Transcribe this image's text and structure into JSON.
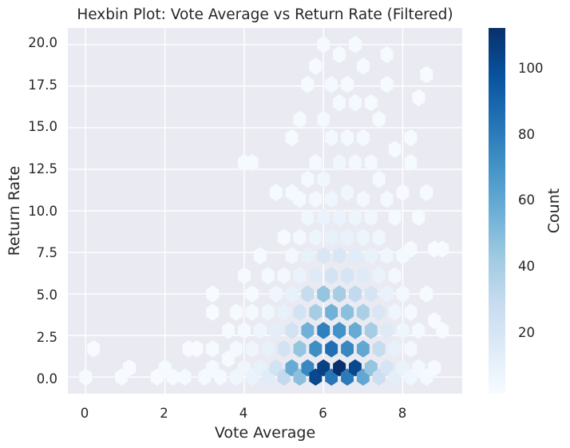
{
  "chart_data": {
    "type": "heatmap",
    "subtype": "hexbin",
    "title": "Hexbin Plot: Vote Average vs Return Rate (Filtered)",
    "xlabel": "Vote Average",
    "ylabel": "Return Rate",
    "xlim": [
      -0.45,
      9.5
    ],
    "ylim": [
      -1.0,
      21.0
    ],
    "xticks": [
      "0",
      "2",
      "4",
      "6",
      "8"
    ],
    "yticks": [
      "0.0",
      "2.5",
      "5.0",
      "7.5",
      "10.0",
      "12.5",
      "15.0",
      "17.5",
      "20.0"
    ],
    "grid": true,
    "colormap": "Blues",
    "colorbar": {
      "label": "Count",
      "range": [
        1,
        112
      ],
      "ticks": [
        "20",
        "40",
        "60",
        "80",
        "100"
      ]
    },
    "bins": [
      {
        "x": 0.0,
        "y": 0.0,
        "count": 1
      },
      {
        "x": 0.2,
        "y": 1.7,
        "count": 1
      },
      {
        "x": 0.9,
        "y": 0.0,
        "count": 1
      },
      {
        "x": 1.1,
        "y": 0.55,
        "count": 1
      },
      {
        "x": 1.8,
        "y": 0.0,
        "count": 1
      },
      {
        "x": 2.0,
        "y": 0.55,
        "count": 2
      },
      {
        "x": 2.2,
        "y": 0.0,
        "count": 2
      },
      {
        "x": 2.5,
        "y": 0.0,
        "count": 3
      },
      {
        "x": 2.6,
        "y": 1.7,
        "count": 1
      },
      {
        "x": 2.8,
        "y": 1.7,
        "count": 1
      },
      {
        "x": 3.0,
        "y": 0.0,
        "count": 3
      },
      {
        "x": 3.2,
        "y": 0.55,
        "count": 3
      },
      {
        "x": 3.2,
        "y": 1.7,
        "count": 2
      },
      {
        "x": 3.2,
        "y": 3.9,
        "count": 1
      },
      {
        "x": 3.2,
        "y": 5.0,
        "count": 1
      },
      {
        "x": 3.4,
        "y": 0.0,
        "count": 3
      },
      {
        "x": 3.6,
        "y": 1.1,
        "count": 2
      },
      {
        "x": 3.6,
        "y": 2.8,
        "count": 2
      },
      {
        "x": 3.8,
        "y": 0.0,
        "count": 5
      },
      {
        "x": 3.8,
        "y": 1.7,
        "count": 3
      },
      {
        "x": 3.8,
        "y": 3.9,
        "count": 2
      },
      {
        "x": 4.0,
        "y": 0.55,
        "count": 6
      },
      {
        "x": 4.0,
        "y": 2.8,
        "count": 3
      },
      {
        "x": 4.0,
        "y": 6.1,
        "count": 2
      },
      {
        "x": 4.0,
        "y": 12.9,
        "count": 2
      },
      {
        "x": 4.2,
        "y": 12.9,
        "count": 2
      },
      {
        "x": 4.2,
        "y": 0.0,
        "count": 8
      },
      {
        "x": 4.2,
        "y": 1.7,
        "count": 6
      },
      {
        "x": 4.2,
        "y": 3.9,
        "count": 3
      },
      {
        "x": 4.2,
        "y": 5.0,
        "count": 2
      },
      {
        "x": 4.4,
        "y": 0.55,
        "count": 10
      },
      {
        "x": 4.4,
        "y": 2.8,
        "count": 6
      },
      {
        "x": 4.4,
        "y": 7.3,
        "count": 2
      },
      {
        "x": 4.6,
        "y": 0.0,
        "count": 14
      },
      {
        "x": 4.6,
        "y": 1.7,
        "count": 10
      },
      {
        "x": 4.6,
        "y": 3.9,
        "count": 5
      },
      {
        "x": 4.6,
        "y": 6.1,
        "count": 3
      },
      {
        "x": 4.8,
        "y": 0.55,
        "count": 22
      },
      {
        "x": 4.8,
        "y": 2.8,
        "count": 12
      },
      {
        "x": 4.8,
        "y": 5.0,
        "count": 5
      },
      {
        "x": 4.8,
        "y": 11.1,
        "count": 2
      },
      {
        "x": 5.0,
        "y": 0.0,
        "count": 30
      },
      {
        "x": 5.0,
        "y": 1.7,
        "count": 22
      },
      {
        "x": 5.0,
        "y": 3.9,
        "count": 10
      },
      {
        "x": 5.0,
        "y": 6.1,
        "count": 4
      },
      {
        "x": 5.0,
        "y": 8.4,
        "count": 2
      },
      {
        "x": 5.2,
        "y": 0.55,
        "count": 58
      },
      {
        "x": 5.2,
        "y": 2.8,
        "count": 22
      },
      {
        "x": 5.2,
        "y": 5.0,
        "count": 10
      },
      {
        "x": 5.2,
        "y": 7.3,
        "count": 4
      },
      {
        "x": 5.2,
        "y": 11.1,
        "count": 3
      },
      {
        "x": 5.2,
        "y": 14.4,
        "count": 2
      },
      {
        "x": 5.4,
        "y": 0.0,
        "count": 48
      },
      {
        "x": 5.4,
        "y": 1.7,
        "count": 45
      },
      {
        "x": 5.4,
        "y": 3.9,
        "count": 22
      },
      {
        "x": 5.4,
        "y": 6.1,
        "count": 8
      },
      {
        "x": 5.4,
        "y": 8.4,
        "count": 4
      },
      {
        "x": 5.4,
        "y": 10.7,
        "count": 3
      },
      {
        "x": 5.4,
        "y": 15.5,
        "count": 2
      },
      {
        "x": 5.6,
        "y": 0.55,
        "count": 75
      },
      {
        "x": 5.6,
        "y": 2.8,
        "count": 55
      },
      {
        "x": 5.6,
        "y": 5.0,
        "count": 28
      },
      {
        "x": 5.6,
        "y": 7.3,
        "count": 10
      },
      {
        "x": 5.6,
        "y": 9.6,
        "count": 5
      },
      {
        "x": 5.6,
        "y": 11.9,
        "count": 3
      },
      {
        "x": 5.6,
        "y": 17.6,
        "count": 2
      },
      {
        "x": 5.8,
        "y": 0.0,
        "count": 102
      },
      {
        "x": 5.8,
        "y": 1.7,
        "count": 72
      },
      {
        "x": 5.8,
        "y": 3.9,
        "count": 40
      },
      {
        "x": 5.8,
        "y": 6.1,
        "count": 15
      },
      {
        "x": 5.8,
        "y": 8.4,
        "count": 7
      },
      {
        "x": 5.8,
        "y": 10.7,
        "count": 4
      },
      {
        "x": 5.8,
        "y": 12.9,
        "count": 3
      },
      {
        "x": 5.8,
        "y": 18.7,
        "count": 2
      },
      {
        "x": 6.0,
        "y": 0.55,
        "count": 105
      },
      {
        "x": 6.0,
        "y": 2.8,
        "count": 78
      },
      {
        "x": 6.0,
        "y": 5.0,
        "count": 45
      },
      {
        "x": 6.0,
        "y": 7.3,
        "count": 18
      },
      {
        "x": 6.0,
        "y": 9.6,
        "count": 8
      },
      {
        "x": 6.0,
        "y": 11.9,
        "count": 5
      },
      {
        "x": 6.0,
        "y": 15.5,
        "count": 3
      },
      {
        "x": 6.0,
        "y": 20.0,
        "count": 2
      },
      {
        "x": 6.2,
        "y": 0.0,
        "count": 82
      },
      {
        "x": 6.2,
        "y": 1.7,
        "count": 85
      },
      {
        "x": 6.2,
        "y": 3.9,
        "count": 55
      },
      {
        "x": 6.2,
        "y": 6.1,
        "count": 22
      },
      {
        "x": 6.2,
        "y": 8.4,
        "count": 10
      },
      {
        "x": 6.2,
        "y": 10.7,
        "count": 6
      },
      {
        "x": 6.2,
        "y": 14.4,
        "count": 4
      },
      {
        "x": 6.2,
        "y": 17.6,
        "count": 3
      },
      {
        "x": 6.4,
        "y": 0.55,
        "count": 112
      },
      {
        "x": 6.4,
        "y": 2.8,
        "count": 70
      },
      {
        "x": 6.4,
        "y": 5.0,
        "count": 40
      },
      {
        "x": 6.4,
        "y": 7.3,
        "count": 18
      },
      {
        "x": 6.4,
        "y": 9.6,
        "count": 8
      },
      {
        "x": 6.4,
        "y": 12.9,
        "count": 5
      },
      {
        "x": 6.4,
        "y": 16.5,
        "count": 3
      },
      {
        "x": 6.4,
        "y": 19.4,
        "count": 2
      },
      {
        "x": 6.6,
        "y": 0.0,
        "count": 80
      },
      {
        "x": 6.6,
        "y": 1.7,
        "count": 75
      },
      {
        "x": 6.6,
        "y": 3.9,
        "count": 48
      },
      {
        "x": 6.6,
        "y": 6.1,
        "count": 20
      },
      {
        "x": 6.6,
        "y": 8.4,
        "count": 9
      },
      {
        "x": 6.6,
        "y": 11.1,
        "count": 5
      },
      {
        "x": 6.6,
        "y": 14.4,
        "count": 3
      },
      {
        "x": 6.6,
        "y": 17.6,
        "count": 2
      },
      {
        "x": 6.8,
        "y": 0.55,
        "count": 102
      },
      {
        "x": 6.8,
        "y": 2.8,
        "count": 58
      },
      {
        "x": 6.8,
        "y": 5.0,
        "count": 30
      },
      {
        "x": 6.8,
        "y": 7.3,
        "count": 14
      },
      {
        "x": 6.8,
        "y": 9.6,
        "count": 7
      },
      {
        "x": 6.8,
        "y": 12.9,
        "count": 4
      },
      {
        "x": 6.8,
        "y": 16.5,
        "count": 3
      },
      {
        "x": 6.8,
        "y": 20.0,
        "count": 2
      },
      {
        "x": 7.0,
        "y": 0.0,
        "count": 60
      },
      {
        "x": 7.0,
        "y": 1.7,
        "count": 60
      },
      {
        "x": 7.0,
        "y": 3.9,
        "count": 38
      },
      {
        "x": 7.0,
        "y": 6.1,
        "count": 15
      },
      {
        "x": 7.0,
        "y": 8.4,
        "count": 7
      },
      {
        "x": 7.0,
        "y": 10.7,
        "count": 4
      },
      {
        "x": 7.0,
        "y": 14.4,
        "count": 3
      },
      {
        "x": 7.0,
        "y": 18.7,
        "count": 2
      },
      {
        "x": 7.2,
        "y": 0.55,
        "count": 45
      },
      {
        "x": 7.2,
        "y": 2.8,
        "count": 40
      },
      {
        "x": 7.2,
        "y": 5.0,
        "count": 20
      },
      {
        "x": 7.2,
        "y": 7.3,
        "count": 9
      },
      {
        "x": 7.2,
        "y": 9.6,
        "count": 5
      },
      {
        "x": 7.2,
        "y": 12.9,
        "count": 3
      },
      {
        "x": 7.2,
        "y": 16.5,
        "count": 2
      },
      {
        "x": 7.4,
        "y": 0.0,
        "count": 25
      },
      {
        "x": 7.4,
        "y": 1.7,
        "count": 28
      },
      {
        "x": 7.4,
        "y": 3.9,
        "count": 18
      },
      {
        "x": 7.4,
        "y": 6.1,
        "count": 8
      },
      {
        "x": 7.4,
        "y": 8.4,
        "count": 5
      },
      {
        "x": 7.4,
        "y": 11.9,
        "count": 3
      },
      {
        "x": 7.4,
        "y": 15.5,
        "count": 2
      },
      {
        "x": 7.6,
        "y": 0.55,
        "count": 20
      },
      {
        "x": 7.6,
        "y": 2.8,
        "count": 15
      },
      {
        "x": 7.6,
        "y": 5.0,
        "count": 9
      },
      {
        "x": 7.6,
        "y": 7.3,
        "count": 5
      },
      {
        "x": 7.6,
        "y": 10.7,
        "count": 3
      },
      {
        "x": 7.6,
        "y": 17.6,
        "count": 2
      },
      {
        "x": 7.6,
        "y": 19.4,
        "count": 2
      },
      {
        "x": 7.8,
        "y": 0.0,
        "count": 12
      },
      {
        "x": 7.8,
        "y": 1.7,
        "count": 10
      },
      {
        "x": 7.8,
        "y": 3.9,
        "count": 6
      },
      {
        "x": 7.8,
        "y": 6.1,
        "count": 4
      },
      {
        "x": 7.8,
        "y": 9.6,
        "count": 3
      },
      {
        "x": 7.8,
        "y": 13.7,
        "count": 2
      },
      {
        "x": 8.0,
        "y": 0.55,
        "count": 8
      },
      {
        "x": 8.0,
        "y": 2.8,
        "count": 6
      },
      {
        "x": 8.0,
        "y": 5.0,
        "count": 4
      },
      {
        "x": 8.0,
        "y": 7.3,
        "count": 3
      },
      {
        "x": 8.0,
        "y": 11.1,
        "count": 2
      },
      {
        "x": 8.2,
        "y": 0.0,
        "count": 5
      },
      {
        "x": 8.2,
        "y": 1.7,
        "count": 4
      },
      {
        "x": 8.2,
        "y": 3.9,
        "count": 3
      },
      {
        "x": 8.2,
        "y": 7.7,
        "count": 2
      },
      {
        "x": 8.2,
        "y": 12.9,
        "count": 2
      },
      {
        "x": 8.2,
        "y": 14.4,
        "count": 2
      },
      {
        "x": 8.4,
        "y": 0.55,
        "count": 4
      },
      {
        "x": 8.4,
        "y": 2.8,
        "count": 3
      },
      {
        "x": 8.4,
        "y": 9.6,
        "count": 2
      },
      {
        "x": 8.6,
        "y": 0.0,
        "count": 3
      },
      {
        "x": 8.6,
        "y": 5.0,
        "count": 2
      },
      {
        "x": 8.6,
        "y": 11.1,
        "count": 2
      },
      {
        "x": 8.8,
        "y": 0.55,
        "count": 2
      },
      {
        "x": 8.8,
        "y": 7.7,
        "count": 1
      },
      {
        "x": 8.8,
        "y": 3.4,
        "count": 1
      },
      {
        "x": 9.0,
        "y": 2.8,
        "count": 1
      },
      {
        "x": 9.0,
        "y": 7.7,
        "count": 1
      },
      {
        "x": 8.4,
        "y": 16.8,
        "count": 1
      },
      {
        "x": 8.6,
        "y": 18.2,
        "count": 1
      }
    ]
  }
}
